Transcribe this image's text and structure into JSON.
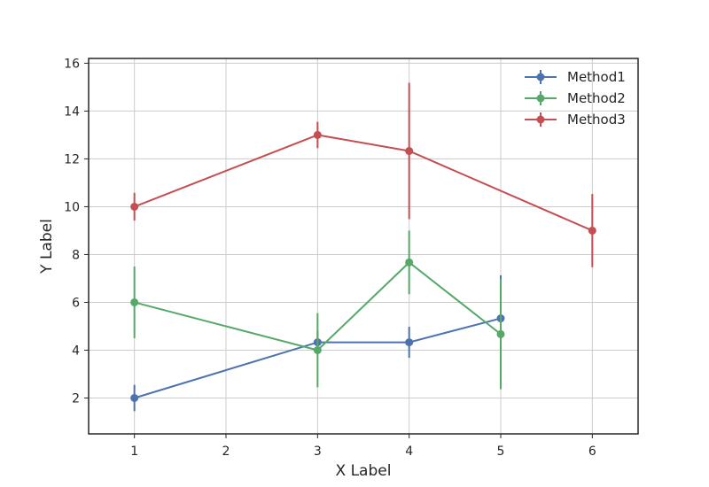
{
  "chart_data": {
    "type": "line",
    "title": "",
    "xlabel": "X Label",
    "ylabel": "Y Label",
    "xlim": [
      0.5,
      6.5
    ],
    "ylim": [
      0.5,
      16.2
    ],
    "xticks": [
      1,
      2,
      3,
      4,
      5,
      6
    ],
    "yticks": [
      2,
      4,
      6,
      8,
      10,
      12,
      14,
      16
    ],
    "grid": true,
    "legend_position": "top-right",
    "series": [
      {
        "name": "Method1",
        "color": "#4c72b0",
        "points": [
          {
            "x": 1,
            "y": 2.0,
            "err": 0.55
          },
          {
            "x": 3,
            "y": 4.33,
            "err": 0.5
          },
          {
            "x": 4,
            "y": 4.33,
            "err": 0.65
          },
          {
            "x": 5,
            "y": 5.33,
            "err": 1.8
          }
        ]
      },
      {
        "name": "Method2",
        "color": "#55a868",
        "points": [
          {
            "x": 1,
            "y": 6.0,
            "err": 1.5
          },
          {
            "x": 3,
            "y": 4.0,
            "err": 1.55
          },
          {
            "x": 4,
            "y": 7.67,
            "err": 1.33
          },
          {
            "x": 5,
            "y": 4.67,
            "err": 2.3
          }
        ]
      },
      {
        "name": "Method3",
        "color": "#c44e52",
        "points": [
          {
            "x": 1,
            "y": 10.0,
            "err": 0.58
          },
          {
            "x": 3,
            "y": 13.0,
            "err": 0.55
          },
          {
            "x": 4,
            "y": 12.33,
            "err": 2.85
          },
          {
            "x": 6,
            "y": 9.0,
            "err": 1.53
          }
        ]
      }
    ]
  }
}
